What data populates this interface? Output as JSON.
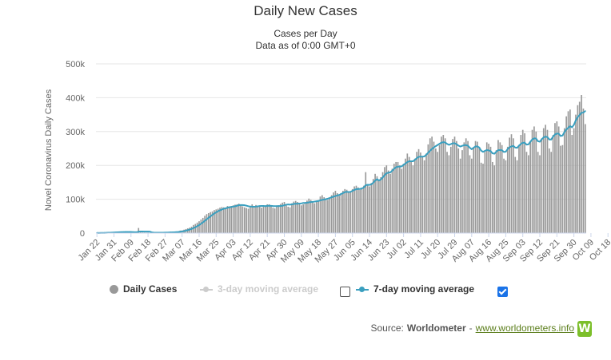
{
  "chart_data": {
    "type": "bar",
    "title": "Daily New Cases",
    "subtitle": [
      "Cases per Day",
      "Data as of 0:00 GMT+0"
    ],
    "ylabel": "Novel Coronavirus Daily Cases",
    "xlabel": "",
    "ylim": [
      0,
      500000
    ],
    "yticks": [
      0,
      100000,
      200000,
      300000,
      400000,
      500000
    ],
    "ytick_labels": [
      "0",
      "100k",
      "200k",
      "300k",
      "400k",
      "500k"
    ],
    "x_start": "Jan 22",
    "x_end": "Oct 19",
    "xtick_labels": [
      "Jan 22",
      "Jan 31",
      "Feb 09",
      "Feb 18",
      "Feb 27",
      "Mar 07",
      "Mar 16",
      "Mar 25",
      "Apr 03",
      "Apr 12",
      "Apr 21",
      "Apr 30",
      "May 09",
      "May 18",
      "May 27",
      "Jun 05",
      "Jun 14",
      "Jun 23",
      "Jul 02",
      "Jul 11",
      "Jul 20",
      "Jul 29",
      "Aug 07",
      "Aug 16",
      "Aug 25",
      "Sep 03",
      "Sep 12",
      "Sep 21",
      "Sep 30",
      "Oct 09",
      "Oct 18"
    ],
    "grid": true,
    "series": [
      {
        "name": "Daily Cases",
        "kind": "bar",
        "color": "#999999",
        "values": [
          500,
          300,
          600,
          700,
          1400,
          1700,
          2000,
          1800,
          2100,
          2600,
          2800,
          3200,
          3900,
          3700,
          3200,
          3400,
          2800,
          3100,
          2500,
          2100,
          2000,
          1800,
          15100,
          6500,
          2100,
          2000,
          1800,
          1900,
          500,
          600,
          1000,
          1100,
          1500,
          1200,
          1300,
          1800,
          1700,
          2500,
          2800,
          2600,
          2500,
          3500,
          4000,
          5000,
          7500,
          8000,
          10000,
          12000,
          14000,
          16000,
          19000,
          24000,
          27000,
          31000,
          35000,
          40000,
          45000,
          51000,
          56000,
          59000,
          62000,
          64000,
          68000,
          70000,
          72000,
          75000,
          77000,
          76000,
          74000,
          80000,
          79000,
          80000,
          82000,
          84000,
          85000,
          87000,
          82000,
          79000,
          76000,
          74000,
          72000,
          78000,
          85000,
          80000,
          83000,
          81000,
          80000,
          75000,
          78000,
          81000,
          85000,
          85000,
          80000,
          75000,
          73000,
          79000,
          82000,
          86000,
          90000,
          92000,
          85000,
          78000,
          76000,
          88000,
          93000,
          95000,
          92000,
          88000,
          82000,
          85000,
          90000,
          96000,
          102000,
          98000,
          92000,
          88000,
          92000,
          96000,
          108000,
          112000,
          106000,
          100000,
          98000,
          105000,
          112000,
          120000,
          125000,
          118000,
          110000,
          118000,
          125000,
          130000,
          128000,
          120000,
          122000,
          130000,
          138000,
          140000,
          135000,
          128000,
          130000,
          140000,
          180000,
          145000,
          138000,
          148000,
          160000,
          175000,
          168000,
          155000,
          165000,
          180000,
          195000,
          200000,
          185000,
          175000,
          190000,
          205000,
          210000,
          210000,
          200000,
          190000,
          205000,
          220000,
          235000,
          225000,
          210000,
          200000,
          220000,
          240000,
          248000,
          238000,
          225000,
          215000,
          235000,
          262000,
          280000,
          285000,
          270000,
          250000,
          240000,
          260000,
          285000,
          290000,
          280000,
          240000,
          230000,
          255000,
          278000,
          285000,
          272000,
          250000,
          220000,
          245000,
          268000,
          280000,
          272000,
          230000,
          220000,
          250000,
          272000,
          270000,
          255000,
          208000,
          205000,
          240000,
          268000,
          264000,
          255000,
          210000,
          200000,
          245000,
          275000,
          268000,
          260000,
          220000,
          215000,
          255000,
          282000,
          292000,
          280000,
          225000,
          215000,
          260000,
          290000,
          305000,
          295000,
          240000,
          230000,
          270000,
          305000,
          315000,
          300000,
          240000,
          230000,
          280000,
          310000,
          320000,
          305000,
          250000,
          240000,
          290000,
          325000,
          330000,
          315000,
          258000,
          260000,
          310000,
          345000,
          360000,
          365000,
          290000,
          310000,
          350000,
          378000,
          388000,
          408000,
          368000,
          322000
        ]
      },
      {
        "name": "3-day moving average",
        "kind": "line",
        "color": "#cccccc",
        "visible": false
      },
      {
        "name": "7-day moving average",
        "kind": "line",
        "color": "#3a9fbf",
        "visible": true
      }
    ]
  },
  "legend": {
    "daily": "Daily Cases",
    "avg3": "3-day moving average",
    "avg7": "7-day moving average"
  },
  "source": {
    "prefix": "Source:",
    "name": "Worldometer",
    "sep": "-",
    "link": "www.worldometers.info",
    "logo_letter": "W"
  }
}
